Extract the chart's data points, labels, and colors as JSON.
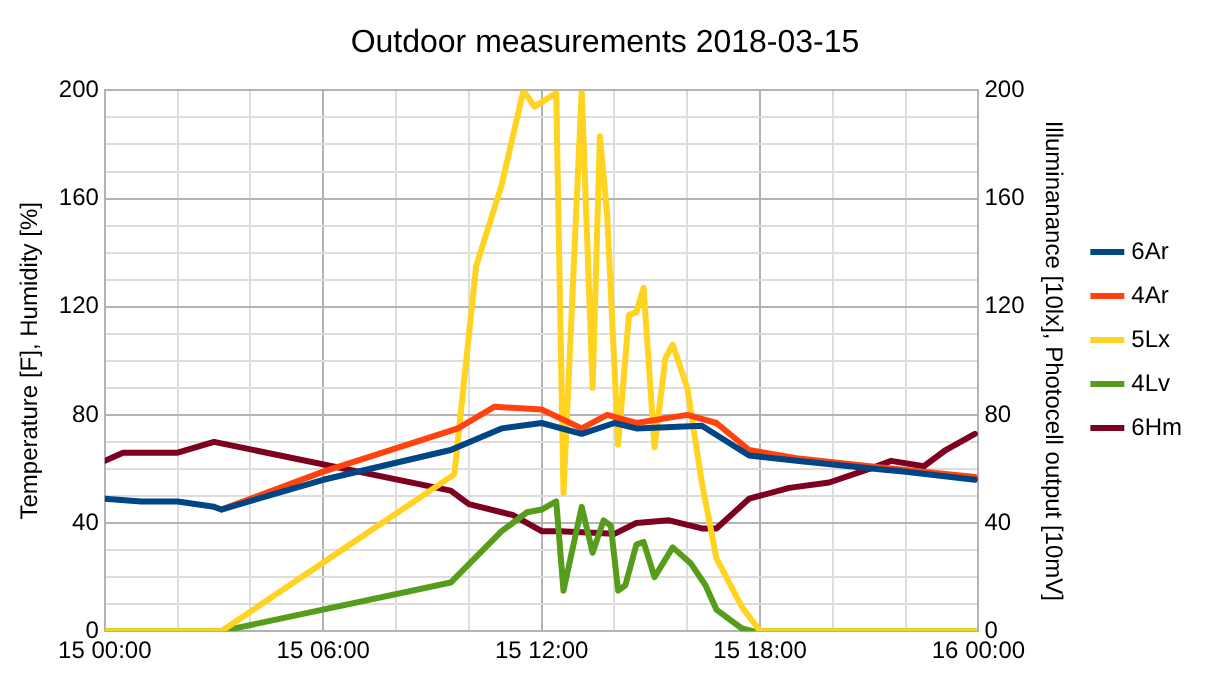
{
  "chart_data": {
    "type": "line",
    "title": "Outdoor measurements 2018-03-15",
    "ylabel": "Temperature [F], Humidity [%]",
    "y2label": "Illuminanance [10lx], Photocell output [10mV]",
    "xlim": [
      "2018-03-15T00:00",
      "2018-03-16T00:00"
    ],
    "xticks": [
      {
        "value": "2018-03-15T00:00",
        "label": "15 00:00"
      },
      {
        "value": "2018-03-15T02:00",
        "label": null
      },
      {
        "value": "2018-03-15T04:00",
        "label": null
      },
      {
        "value": "2018-03-15T06:00",
        "label": "15 06:00"
      },
      {
        "value": "2018-03-15T08:00",
        "label": null
      },
      {
        "value": "2018-03-15T10:00",
        "label": null
      },
      {
        "value": "2018-03-15T12:00",
        "label": "15 12:00"
      },
      {
        "value": "2018-03-15T14:00",
        "label": null
      },
      {
        "value": "2018-03-15T16:00",
        "label": null
      },
      {
        "value": "2018-03-15T18:00",
        "label": "15 18:00"
      },
      {
        "value": "2018-03-15T20:00",
        "label": null
      },
      {
        "value": "2018-03-15T22:00",
        "label": null
      },
      {
        "value": "2018-03-16T00:00",
        "label": "16 00:00"
      }
    ],
    "ylim": [
      0,
      200
    ],
    "yticks": [
      0,
      {
        "value": 10,
        "label": null
      },
      {
        "value": 20,
        "label": null
      },
      {
        "value": 30,
        "label": null
      },
      40,
      {
        "value": 50,
        "label": null
      },
      {
        "value": 60,
        "label": null
      },
      {
        "value": 70,
        "label": null
      },
      80,
      {
        "value": 90,
        "label": null
      },
      {
        "value": 100,
        "label": null
      },
      {
        "value": 110,
        "label": null
      },
      120,
      {
        "value": 130,
        "label": null
      },
      {
        "value": 140,
        "label": null
      },
      {
        "value": 150,
        "label": null
      },
      160,
      {
        "value": 170,
        "label": null
      },
      {
        "value": 180,
        "label": null
      },
      {
        "value": 190,
        "label": null
      },
      200
    ],
    "y2lim": [
      0,
      200
    ],
    "y2ticks": [
      0,
      40,
      80,
      120,
      160,
      200
    ],
    "grid": true,
    "legend": "right",
    "marker": "none",
    "line_style": "solid",
    "series": [
      {
        "name": "6Ar",
        "color": "#004586",
        "x": [
          "2018-03-15T00:00",
          "2018-03-15T01:00",
          "2018-03-15T02:00",
          "2018-03-15T03:00",
          "2018-03-15T03:12",
          "2018-03-15T06:00",
          "2018-03-15T09:30",
          "2018-03-15T10:54",
          "2018-03-15T12:00",
          "2018-03-15T13:06",
          "2018-03-15T14:00",
          "2018-03-15T14:36",
          "2018-03-15T16:24",
          "2018-03-15T17:42",
          "2018-03-15T19:00",
          "2018-03-15T21:12",
          "2018-03-15T22:00",
          "2018-03-15T23:54"
        ],
        "values": [
          49,
          48,
          48,
          46,
          45,
          56,
          67,
          75,
          77,
          73,
          77,
          75,
          76,
          65,
          63,
          60,
          59,
          56
        ]
      },
      {
        "name": "4Ar",
        "color": "#ff420e",
        "x": [
          "2018-03-15T03:12",
          "2018-03-15T06:00",
          "2018-03-15T09:42",
          "2018-03-15T10:42",
          "2018-03-15T12:00",
          "2018-03-15T13:06",
          "2018-03-15T13:48",
          "2018-03-15T14:36",
          "2018-03-15T16:00",
          "2018-03-15T16:48",
          "2018-03-15T17:42",
          "2018-03-15T19:00",
          "2018-03-15T21:00",
          "2018-03-15T23:54"
        ],
        "values": [
          45,
          59,
          75,
          83,
          82,
          75,
          80,
          77,
          80,
          77,
          67,
          64,
          61,
          57
        ]
      },
      {
        "name": "5Lx",
        "color": "#ffd320",
        "x": [
          "2018-03-15T00:00",
          "2018-03-15T03:12",
          "2018-03-15T09:36",
          "2018-03-15T10:12",
          "2018-03-15T10:54",
          "2018-03-15T11:30",
          "2018-03-15T11:48",
          "2018-03-15T12:24",
          "2018-03-15T12:36",
          "2018-03-15T13:06",
          "2018-03-15T13:24",
          "2018-03-15T13:36",
          "2018-03-15T13:48",
          "2018-03-15T14:06",
          "2018-03-15T14:24",
          "2018-03-15T14:36",
          "2018-03-15T14:48",
          "2018-03-15T15:06",
          "2018-03-15T15:24",
          "2018-03-15T15:36",
          "2018-03-15T16:00",
          "2018-03-15T16:24",
          "2018-03-15T16:48",
          "2018-03-15T17:30",
          "2018-03-15T18:00",
          "2018-03-15T23:54"
        ],
        "values": [
          0,
          0,
          58,
          135,
          165,
          200,
          194,
          199,
          51,
          200,
          90,
          183,
          154,
          69,
          117,
          118,
          127,
          68,
          101,
          106,
          90,
          55,
          27,
          9,
          0,
          0
        ]
      },
      {
        "name": "4Lv",
        "color": "#579d1c",
        "x": [
          "2018-03-15T00:00",
          "2018-03-15T03:12",
          "2018-03-15T09:30",
          "2018-03-15T10:54",
          "2018-03-15T11:36",
          "2018-03-15T12:00",
          "2018-03-15T12:24",
          "2018-03-15T12:36",
          "2018-03-15T13:06",
          "2018-03-15T13:24",
          "2018-03-15T13:42",
          "2018-03-15T13:54",
          "2018-03-15T14:06",
          "2018-03-15T14:18",
          "2018-03-15T14:36",
          "2018-03-15T14:48",
          "2018-03-15T15:06",
          "2018-03-15T15:36",
          "2018-03-15T16:06",
          "2018-03-15T16:30",
          "2018-03-15T16:48",
          "2018-03-15T17:30",
          "2018-03-15T17:48",
          "2018-03-15T23:54"
        ],
        "values": [
          0,
          0,
          18,
          37,
          44,
          45,
          48,
          15,
          46,
          29,
          41,
          39,
          15,
          17,
          32,
          33,
          20,
          31,
          25,
          17,
          8,
          1,
          0,
          0
        ]
      },
      {
        "name": "6Hm",
        "color": "#7e0021",
        "x": [
          "2018-03-15T00:00",
          "2018-03-15T00:30",
          "2018-03-15T02:00",
          "2018-03-15T03:00",
          "2018-03-15T09:30",
          "2018-03-15T10:00",
          "2018-03-15T11:12",
          "2018-03-15T12:00",
          "2018-03-15T12:30",
          "2018-03-15T14:00",
          "2018-03-15T14:36",
          "2018-03-15T15:30",
          "2018-03-15T16:24",
          "2018-03-15T16:48",
          "2018-03-15T17:42",
          "2018-03-15T18:48",
          "2018-03-15T19:54",
          "2018-03-15T21:00",
          "2018-03-15T21:36",
          "2018-03-15T22:30",
          "2018-03-15T23:06",
          "2018-03-15T23:54"
        ],
        "values": [
          63,
          66,
          66,
          70,
          52,
          47,
          43,
          37,
          37,
          36,
          40,
          41,
          38,
          38,
          49,
          53,
          55,
          60,
          63,
          61,
          67,
          73
        ]
      }
    ]
  }
}
